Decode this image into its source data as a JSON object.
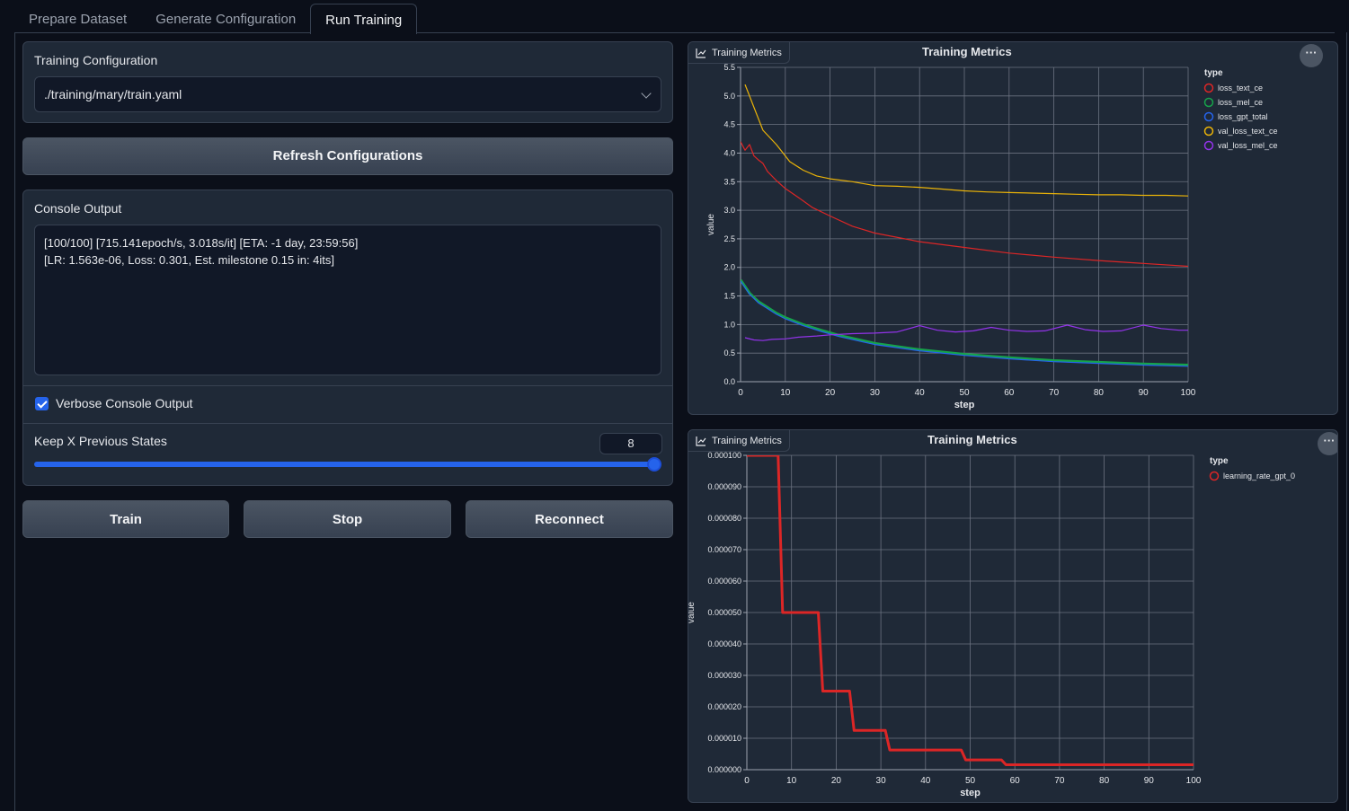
{
  "tabs": [
    {
      "label": "Prepare Dataset"
    },
    {
      "label": "Generate Configuration"
    },
    {
      "label": "Run Training"
    }
  ],
  "config": {
    "label": "Training Configuration",
    "value": "./training/mary/train.yaml"
  },
  "buttons": {
    "refresh": "Refresh Configurations",
    "train": "Train",
    "stop": "Stop",
    "reconnect": "Reconnect"
  },
  "console": {
    "label": "Console Output",
    "line1": "[100/100] [715.141epoch/s, 3.018s/it] [ETA: -1 day, 23:59:56]",
    "line2": "[LR: 1.563e-06, Loss: 0.301, Est. milestone 0.15 in: 4its]"
  },
  "verbose": {
    "label": "Verbose Console Output",
    "checked": true
  },
  "keep_states": {
    "label": "Keep X Previous States",
    "value": "8",
    "fraction": 1.0
  },
  "chart_data": [
    {
      "type": "line",
      "label": "Training Metrics",
      "title": "Training Metrics",
      "xlabel": "step",
      "ylabel": "value",
      "legend_title": "type",
      "legend_position": "right",
      "xlim": [
        0,
        100
      ],
      "ylim": [
        0,
        5.5
      ],
      "xticks": [
        0,
        10,
        20,
        30,
        40,
        50,
        60,
        70,
        80,
        90,
        100
      ],
      "yticks": [
        0.0,
        0.5,
        1.0,
        1.5,
        2.0,
        2.5,
        3.0,
        3.5,
        4.0,
        4.5,
        5.0,
        5.5
      ],
      "ytick_labels": [
        "0.0",
        "0.5",
        "1.0",
        "1.5",
        "2.0",
        "2.5",
        "3.0",
        "3.5",
        "4.0",
        "4.5",
        "5.0",
        "5.5"
      ],
      "grid": true,
      "series": [
        {
          "name": "loss_text_ce",
          "color": "#dc2626",
          "width": 1.2,
          "x": [
            0,
            1,
            2,
            3,
            4,
            5,
            6,
            8,
            10,
            13,
            16,
            20,
            25,
            30,
            40,
            50,
            60,
            70,
            80,
            90,
            100
          ],
          "y": [
            4.2,
            4.05,
            4.15,
            3.95,
            3.88,
            3.82,
            3.68,
            3.52,
            3.38,
            3.22,
            3.05,
            2.9,
            2.72,
            2.6,
            2.45,
            2.35,
            2.25,
            2.18,
            2.12,
            2.07,
            2.02
          ]
        },
        {
          "name": "loss_mel_ce",
          "color": "#16a34a",
          "width": 3,
          "x": [
            0,
            2,
            4,
            6,
            8,
            10,
            14,
            18,
            22,
            26,
            30,
            40,
            50,
            60,
            70,
            80,
            90,
            100
          ],
          "y": [
            1.78,
            1.55,
            1.4,
            1.3,
            1.2,
            1.12,
            1.0,
            0.9,
            0.81,
            0.74,
            0.67,
            0.56,
            0.48,
            0.42,
            0.37,
            0.34,
            0.31,
            0.29
          ]
        },
        {
          "name": "loss_gpt_total",
          "color": "#2563eb",
          "width": 1.2,
          "x": [
            0,
            2,
            4,
            6,
            8,
            10,
            14,
            18,
            22,
            26,
            30,
            40,
            50,
            60,
            70,
            80,
            90,
            100
          ],
          "y": [
            1.76,
            1.53,
            1.38,
            1.28,
            1.18,
            1.1,
            0.98,
            0.88,
            0.79,
            0.72,
            0.65,
            0.54,
            0.46,
            0.4,
            0.35,
            0.32,
            0.29,
            0.27
          ]
        },
        {
          "name": "val_loss_text_ce",
          "color": "#eab308",
          "width": 1.2,
          "x": [
            1,
            3,
            5,
            8,
            11,
            14,
            17,
            20,
            25,
            30,
            35,
            40,
            45,
            50,
            55,
            60,
            65,
            70,
            75,
            80,
            85,
            90,
            95,
            100
          ],
          "y": [
            5.2,
            4.8,
            4.4,
            4.15,
            3.85,
            3.7,
            3.6,
            3.55,
            3.5,
            3.43,
            3.42,
            3.4,
            3.37,
            3.34,
            3.32,
            3.31,
            3.3,
            3.29,
            3.28,
            3.27,
            3.27,
            3.26,
            3.26,
            3.25
          ]
        },
        {
          "name": "val_loss_mel_ce",
          "color": "#9333ea",
          "width": 1.2,
          "x": [
            1,
            3,
            5,
            7,
            10,
            13,
            17,
            20,
            25,
            30,
            35,
            40,
            44,
            48,
            52,
            56,
            60,
            64,
            68,
            73,
            77,
            81,
            85,
            90,
            94,
            98,
            100
          ],
          "y": [
            0.77,
            0.73,
            0.72,
            0.74,
            0.75,
            0.78,
            0.8,
            0.82,
            0.84,
            0.85,
            0.87,
            0.98,
            0.9,
            0.87,
            0.89,
            0.95,
            0.9,
            0.88,
            0.89,
            0.99,
            0.91,
            0.88,
            0.89,
            0.99,
            0.93,
            0.9,
            0.9
          ]
        }
      ]
    },
    {
      "type": "line",
      "label": "Training Metrics",
      "title": "Training Metrics",
      "xlabel": "step",
      "ylabel": "value",
      "legend_title": "type",
      "legend_position": "right",
      "xlim": [
        0,
        100
      ],
      "ylim": [
        0,
        0.0001
      ],
      "xticks": [
        0,
        10,
        20,
        30,
        40,
        50,
        60,
        70,
        80,
        90,
        100
      ],
      "yticks": [
        0,
        1e-05,
        2e-05,
        3e-05,
        4e-05,
        5e-05,
        6e-05,
        7e-05,
        8e-05,
        9e-05,
        0.0001
      ],
      "ytick_labels": [
        "0.000000",
        "0.000010",
        "0.000020",
        "0.000030",
        "0.000040",
        "0.000050",
        "0.000060",
        "0.000070",
        "0.000080",
        "0.000090",
        "0.000100"
      ],
      "grid": true,
      "series": [
        {
          "name": "learning_rate_gpt_0",
          "color": "#dc2626",
          "width": 3,
          "x": [
            0,
            7,
            8,
            16,
            17,
            23,
            24,
            31,
            32,
            48,
            49,
            57,
            58,
            100
          ],
          "y": [
            0.0001,
            0.0001,
            5e-05,
            5e-05,
            2.5e-05,
            2.5e-05,
            1.25e-05,
            1.25e-05,
            6.25e-06,
            6.25e-06,
            3.125e-06,
            3.125e-06,
            1.5625e-06,
            1.5625e-06
          ]
        }
      ]
    }
  ]
}
